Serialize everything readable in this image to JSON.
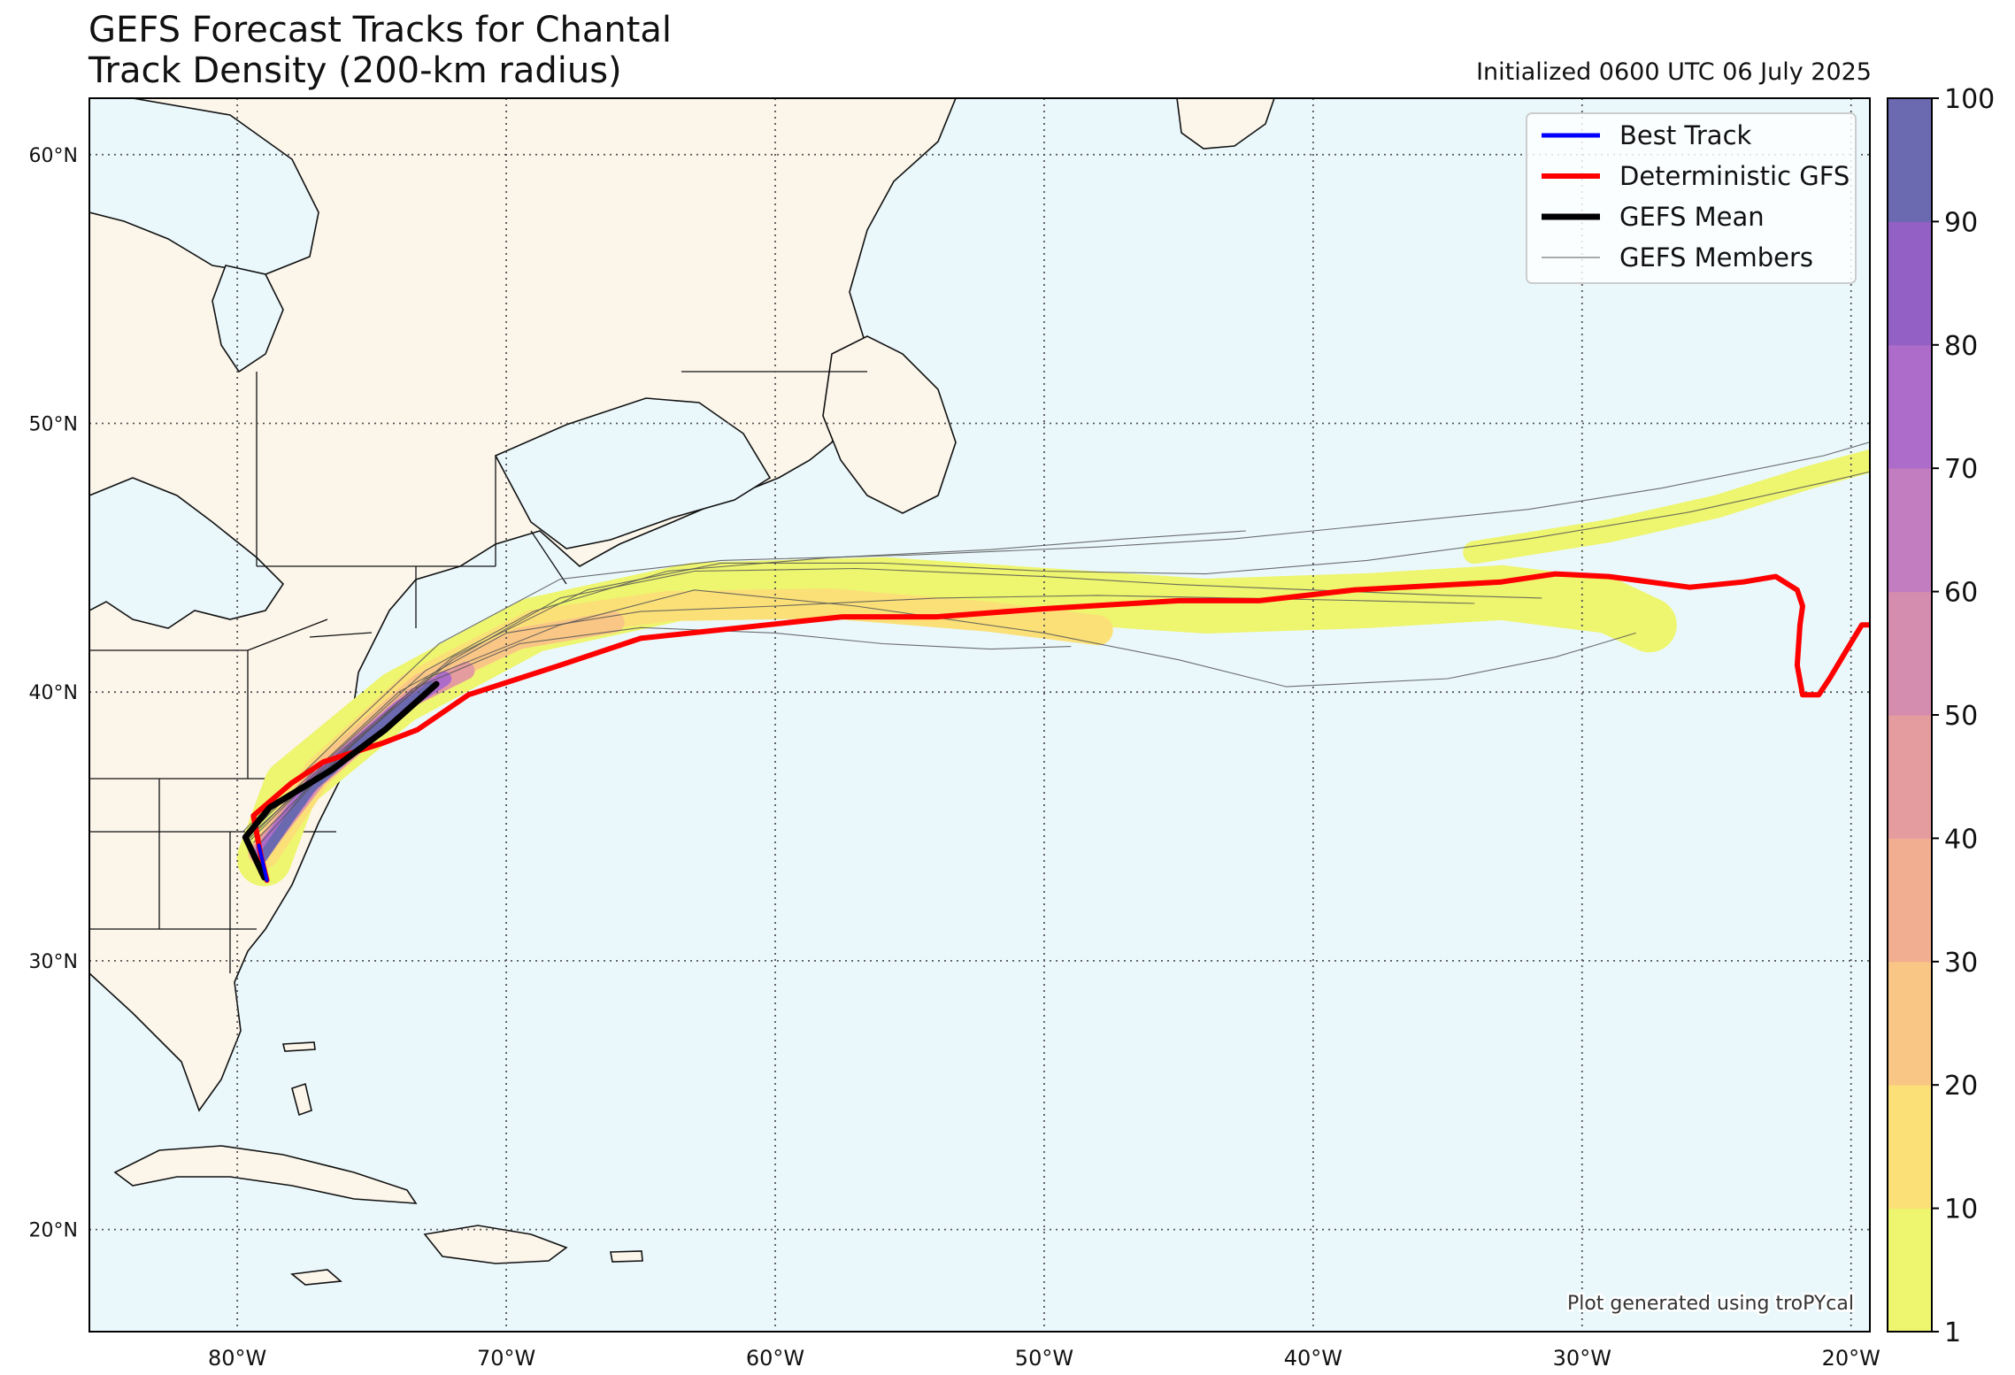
{
  "header": {
    "title_line1": "GEFS Forecast Tracks for Chantal",
    "title_line2": "Track Density (200-km radius)",
    "initialized": "Initialized 0600 UTC 06 July 2025"
  },
  "map": {
    "lon_range": [
      -85.5,
      -19.3
    ],
    "lat_range": [
      16.2,
      62.1
    ],
    "lat_ticks": [
      {
        "value": 60,
        "label": "60°N"
      },
      {
        "value": 50,
        "label": "50°N"
      },
      {
        "value": 40,
        "label": "40°N"
      },
      {
        "value": 30,
        "label": "30°N"
      },
      {
        "value": 20,
        "label": "20°N"
      }
    ],
    "lon_ticks": [
      {
        "value": -80,
        "label": "80°W"
      },
      {
        "value": -70,
        "label": "70°W"
      },
      {
        "value": -60,
        "label": "60°W"
      },
      {
        "value": -50,
        "label": "50°W"
      },
      {
        "value": -40,
        "label": "40°W"
      },
      {
        "value": -30,
        "label": "30°W"
      },
      {
        "value": -20,
        "label": "20°W"
      }
    ],
    "gridlines": "dotted",
    "ocean_color": "#eaf8fc",
    "land_color": "#fbf5ea",
    "credit": "Plot generated using troPYcal"
  },
  "legend": {
    "position": "top-right",
    "items": [
      {
        "label": "Best Track",
        "color": "#0000ff",
        "width": 5
      },
      {
        "label": "Deterministic GFS",
        "color": "#ff0000",
        "width": 6
      },
      {
        "label": "GEFS Mean",
        "color": "#000000",
        "width": 7
      },
      {
        "label": "GEFS Members",
        "color": "#555555",
        "width": 1
      }
    ]
  },
  "colorbar": {
    "ticks": [
      "1",
      "10",
      "20",
      "30",
      "40",
      "50",
      "60",
      "70",
      "80",
      "90",
      "100"
    ],
    "colors": [
      "#eef56e",
      "#fbe078",
      "#f9c686",
      "#f2ae90",
      "#e49c9e",
      "#d48caf",
      "#c27dc0",
      "#ad6cca",
      "#9360c6",
      "#6b69b0"
    ]
  },
  "tracks": {
    "deterministic_gfs": [
      [
        -78.9,
        33.0
      ],
      [
        -79.1,
        33.8
      ],
      [
        -79.4,
        35.4
      ],
      [
        -78.0,
        36.6
      ],
      [
        -76.8,
        37.4
      ],
      [
        -74.6,
        38.1
      ],
      [
        -73.3,
        38.6
      ],
      [
        -71.4,
        39.9
      ],
      [
        -68.0,
        41.0
      ],
      [
        -65.0,
        42.0
      ],
      [
        -57.5,
        42.8
      ],
      [
        -54.0,
        42.8
      ],
      [
        -50.0,
        43.1
      ],
      [
        -45.0,
        43.4
      ],
      [
        -42.0,
        43.4
      ],
      [
        -38.5,
        43.8
      ],
      [
        -33.0,
        44.1
      ],
      [
        -31.0,
        44.4
      ],
      [
        -29.0,
        44.3
      ],
      [
        -26.0,
        43.9
      ],
      [
        -24.0,
        44.1
      ],
      [
        -22.8,
        44.3
      ],
      [
        -22.0,
        43.8
      ],
      [
        -21.8,
        43.2
      ],
      [
        -21.9,
        42.5
      ],
      [
        -22.0,
        41.0
      ],
      [
        -21.8,
        39.9
      ],
      [
        -21.2,
        39.9
      ],
      [
        -20.8,
        40.5
      ],
      [
        -20.2,
        41.5
      ],
      [
        -19.6,
        42.5
      ],
      [
        -19.3,
        42.5
      ]
    ],
    "gefs_mean": [
      [
        -79.0,
        33.1
      ],
      [
        -79.7,
        34.6
      ],
      [
        -78.8,
        35.7
      ],
      [
        -76.5,
        37.1
      ],
      [
        -74.5,
        38.6
      ],
      [
        -72.6,
        40.3
      ]
    ],
    "best_track": [
      [
        -78.9,
        33.0
      ],
      [
        -79.2,
        34.3
      ]
    ],
    "members": [
      [
        [
          -79.5,
          34.5
        ],
        [
          -76.5,
          37.5
        ],
        [
          -73.0,
          40.5
        ],
        [
          -68.0,
          42.5
        ],
        [
          -63.0,
          43.8
        ],
        [
          -57.0,
          43.2
        ],
        [
          -50.0,
          42.2
        ],
        [
          -45.0,
          41.2
        ],
        [
          -41.0,
          40.2
        ],
        [
          -35.0,
          40.5
        ],
        [
          -31.0,
          41.3
        ],
        [
          -28.0,
          42.2
        ]
      ],
      [
        [
          -79.5,
          34.7
        ],
        [
          -75.5,
          38.3
        ],
        [
          -72.0,
          41.2
        ],
        [
          -68.0,
          43.5
        ],
        [
          -63.0,
          44.5
        ],
        [
          -57.0,
          44.6
        ],
        [
          -50.0,
          44.3
        ],
        [
          -45.0,
          44.0
        ],
        [
          -40.0,
          43.8
        ],
        [
          -35.0,
          43.6
        ],
        [
          -31.5,
          43.5
        ]
      ],
      [
        [
          -79.8,
          34.8
        ],
        [
          -76.0,
          38.5
        ],
        [
          -72.5,
          41.8
        ],
        [
          -68.0,
          44.2
        ],
        [
          -62.0,
          44.9
        ],
        [
          -55.0,
          45.1
        ],
        [
          -48.0,
          45.4
        ],
        [
          -43.0,
          45.7
        ],
        [
          -38.0,
          46.2
        ],
        [
          -32.0,
          46.8
        ],
        [
          -27.0,
          47.6
        ],
        [
          -21.0,
          48.8
        ],
        [
          -19.3,
          49.3
        ]
      ],
      [
        [
          -79.6,
          34.5
        ],
        [
          -76.5,
          37.6
        ],
        [
          -73.0,
          40.8
        ],
        [
          -69.0,
          43.0
        ],
        [
          -64.0,
          44.5
        ],
        [
          -58.0,
          45.0
        ],
        [
          -52.0,
          45.3
        ],
        [
          -47.0,
          45.7
        ],
        [
          -42.5,
          46.0
        ]
      ],
      [
        [
          -79.4,
          34.4
        ],
        [
          -76.0,
          37.8
        ],
        [
          -72.0,
          41.3
        ],
        [
          -67.0,
          43.8
        ],
        [
          -62.0,
          44.8
        ],
        [
          -56.0,
          44.8
        ],
        [
          -50.0,
          44.5
        ],
        [
          -44.0,
          44.4
        ],
        [
          -38.0,
          44.9
        ],
        [
          -32.0,
          45.7
        ],
        [
          -26.0,
          46.7
        ],
        [
          -21.0,
          47.8
        ],
        [
          -19.3,
          48.2
        ]
      ],
      [
        [
          -79.3,
          34.2
        ],
        [
          -76.8,
          37.0
        ],
        [
          -73.5,
          40.1
        ],
        [
          -69.5,
          41.8
        ],
        [
          -65.0,
          42.4
        ],
        [
          -60.0,
          42.2
        ],
        [
          -56.0,
          41.8
        ],
        [
          -52.0,
          41.6
        ],
        [
          -49.0,
          41.7
        ]
      ],
      [
        [
          -79.7,
          34.6
        ],
        [
          -77.0,
          37.2
        ],
        [
          -74.0,
          40.0
        ],
        [
          -70.0,
          42.2
        ],
        [
          -65.0,
          43.0
        ],
        [
          -60.0,
          43.2
        ],
        [
          -54.0,
          43.5
        ],
        [
          -48.0,
          43.6
        ],
        [
          -43.0,
          43.5
        ],
        [
          -38.0,
          43.4
        ],
        [
          -34.0,
          43.3
        ]
      ]
    ],
    "density_bands": [
      {
        "color": "#eef56e",
        "width": 62,
        "path": [
          [
            -79.0,
            33.8
          ],
          [
            -78.0,
            36.5
          ],
          [
            -74.0,
            39.8
          ],
          [
            -69.0,
            42.5
          ],
          [
            -63.0,
            43.8
          ],
          [
            -56.0,
            44.0
          ],
          [
            -50.0,
            43.6
          ],
          [
            -44.0,
            43.2
          ],
          [
            -38.0,
            43.4
          ],
          [
            -33.0,
            43.7
          ],
          [
            -29.0,
            43.2
          ],
          [
            -27.5,
            42.5
          ]
        ]
      },
      {
        "color": "#eef56e",
        "width": 26,
        "path": [
          [
            -34.0,
            45.2
          ],
          [
            -29.0,
            46.0
          ],
          [
            -25.0,
            46.9
          ],
          [
            -21.5,
            48.0
          ],
          [
            -19.3,
            48.6
          ]
        ]
      },
      {
        "color": "#fbe078",
        "width": 34,
        "path": [
          [
            -79.0,
            34.0
          ],
          [
            -77.0,
            37.0
          ],
          [
            -73.5,
            40.2
          ],
          [
            -69.0,
            42.5
          ],
          [
            -64.0,
            43.2
          ],
          [
            -58.0,
            43.3
          ],
          [
            -52.0,
            42.8
          ],
          [
            -48.0,
            42.3
          ]
        ]
      },
      {
        "color": "#f9c686",
        "width": 24,
        "path": [
          [
            -79.2,
            34.0
          ],
          [
            -76.8,
            37.2
          ],
          [
            -73.2,
            40.3
          ],
          [
            -69.5,
            42.0
          ],
          [
            -66.0,
            42.6
          ]
        ]
      },
      {
        "color": "#e49c9e",
        "width": 20,
        "path": [
          [
            -79.2,
            34.0
          ],
          [
            -77.0,
            36.8
          ],
          [
            -73.5,
            39.8
          ],
          [
            -71.5,
            40.8
          ]
        ]
      },
      {
        "color": "#ad6cca",
        "width": 16,
        "path": [
          [
            -79.2,
            33.9
          ],
          [
            -77.2,
            36.6
          ],
          [
            -74.0,
            39.4
          ],
          [
            -72.3,
            40.5
          ]
        ]
      },
      {
        "color": "#6b69b0",
        "width": 11,
        "path": [
          [
            -79.1,
            33.8
          ],
          [
            -77.3,
            36.4
          ],
          [
            -74.3,
            39.1
          ],
          [
            -72.8,
            40.2
          ]
        ]
      }
    ]
  }
}
